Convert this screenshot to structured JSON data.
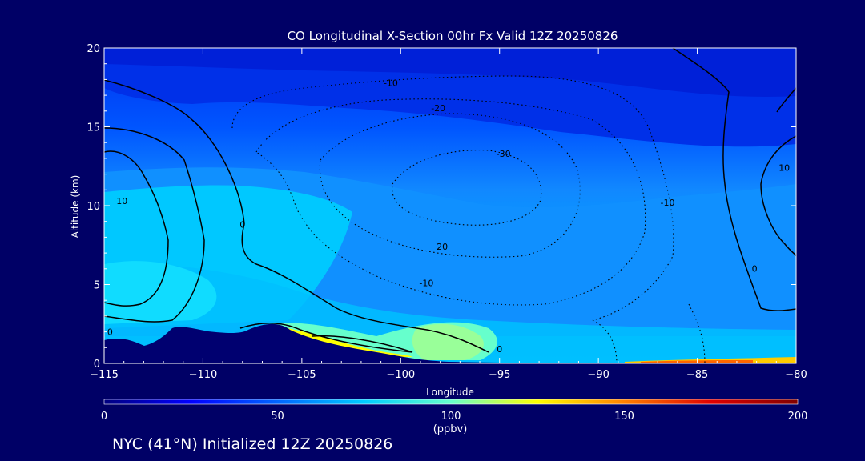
{
  "chart_data": {
    "type": "heatmap",
    "title": "CO Longitudinal X-Section 00hr  Fx Valid 12Z 20250826",
    "xlabel": "Longitude",
    "ylabel": "Altitude (km)",
    "xlim": [
      -115,
      -80
    ],
    "ylim": [
      0,
      20
    ],
    "x_ticks": [
      -115,
      -110,
      -105,
      -100,
      -95,
      -90,
      -85,
      -80
    ],
    "x_tick_labels": [
      "−115",
      "−110",
      "−105",
      "−100",
      "−95",
      "−90",
      "−85",
      "−80"
    ],
    "y_ticks": [
      0,
      5,
      10,
      15,
      20
    ],
    "y_tick_labels": [
      "0",
      "5",
      "10",
      "15",
      "20"
    ],
    "colorbar": {
      "label": "(ppbv)",
      "range": [
        0,
        200
      ],
      "ticks": [
        0,
        50,
        100,
        150,
        200
      ],
      "tick_labels": [
        "0",
        "50",
        "100",
        "150",
        "200"
      ],
      "stops": [
        "#00007f",
        "#0000ff",
        "#0066ff",
        "#00ccff",
        "#66ffcc",
        "#ffff00",
        "#ff8000",
        "#e00000",
        "#800000"
      ]
    },
    "contour_labels": [
      {
        "text": "-10",
        "lon": -100.5,
        "alt": 17.6
      },
      {
        "text": "-20",
        "lon": -98.1,
        "alt": 16.0
      },
      {
        "text": "-30",
        "lon": -94.8,
        "alt": 13.1
      },
      {
        "text": "20",
        "lon": -97.9,
        "alt": 7.2
      },
      {
        "text": "-10",
        "lon": -98.7,
        "alt": 4.9
      },
      {
        "text": "-10",
        "lon": -86.5,
        "alt": 10.0
      },
      {
        "text": "10",
        "lon": -114.1,
        "alt": 10.1
      },
      {
        "text": "0",
        "lon": -108.0,
        "alt": 8.6
      },
      {
        "text": "0",
        "lon": -114.7,
        "alt": 1.8
      },
      {
        "text": "0",
        "lon": -95.0,
        "alt": 0.7
      },
      {
        "text": "0",
        "lon": -82.1,
        "alt": 5.8
      },
      {
        "text": "10",
        "lon": -80.6,
        "alt": 12.2
      }
    ]
  },
  "footer": "NYC (41°N) Initialized 12Z 20250826"
}
